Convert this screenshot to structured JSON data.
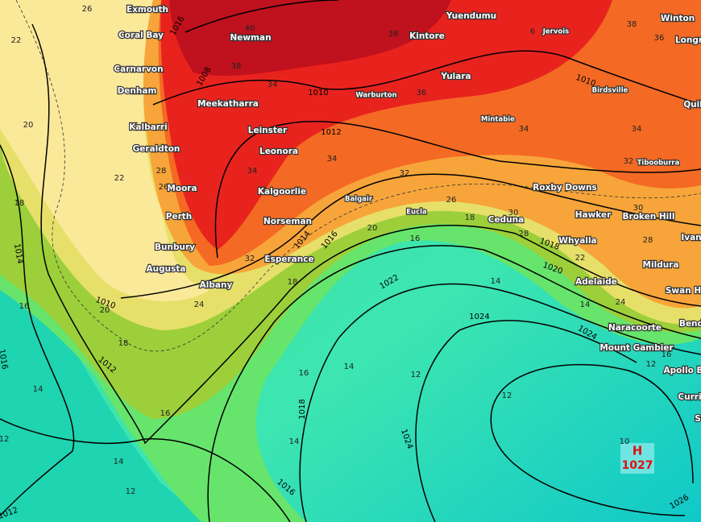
{
  "places": [
    "Exmouth",
    "Coral Bay",
    "Carnarvon",
    "Denham",
    "Kalbarri",
    "Geraldton",
    "Moora",
    "Perth",
    "Bunbury",
    "Augusta",
    "Albany",
    "Newman",
    "Meekatharra",
    "Leinster",
    "Leonora",
    "Kalgoorlie",
    "Norseman",
    "Esperance",
    "Warburton",
    "Yuendumu",
    "Kintore",
    "Yulara",
    "Mintabie",
    "Balgair",
    "Eucla",
    "Ceduna",
    "Roxby Downs",
    "Hawker",
    "Whyalla",
    "Adelaide",
    "Naracoorte",
    "Mount Gambier",
    "Broken Hill",
    "Mildura",
    "Tibooburra",
    "Birdsville",
    "Jervois",
    "Winton",
    "Longr",
    "Quil",
    "Ivan",
    "Swan H",
    "Bend",
    "Apollo B",
    "Curri",
    "S"
  ],
  "isobar_labels": [
    1016,
    1008,
    1010,
    1012,
    1010,
    1014,
    1016,
    1018,
    1020,
    1022,
    1024,
    1024,
    1026,
    1010,
    1012,
    1014,
    1016,
    1018,
    1016,
    1024,
    1012
  ],
  "temperature_labels": [
    26,
    22,
    20,
    18,
    22,
    16,
    20,
    18,
    16,
    14,
    12,
    14,
    12,
    40,
    38,
    38,
    36,
    34,
    34,
    34,
    34,
    34,
    32,
    32,
    30,
    28,
    26,
    30,
    28,
    24,
    22,
    18,
    16,
    18,
    32,
    28,
    26,
    24,
    20,
    16,
    14,
    14,
    14,
    14,
    12,
    12,
    12,
    16,
    10,
    6,
    36,
    38
  ],
  "high": {
    "symbol": "H",
    "pressure": 1027
  }
}
